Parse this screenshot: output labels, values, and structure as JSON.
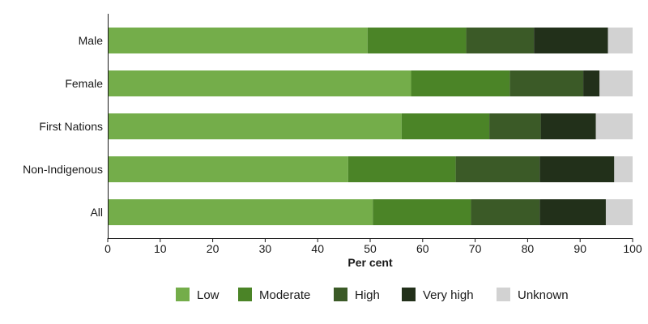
{
  "chart_data": {
    "type": "bar",
    "orientation": "horizontal",
    "stacked": true,
    "title": "",
    "xlabel": "Per cent",
    "ylabel": "",
    "xlim": [
      0,
      100
    ],
    "xticks": [
      0,
      10,
      20,
      30,
      40,
      50,
      60,
      70,
      80,
      90,
      100
    ],
    "grid": false,
    "legend_position": "bottom",
    "categories": [
      "Male",
      "Female",
      "First Nations",
      "Non-Indigenous",
      "All"
    ],
    "series": [
      {
        "name": "Low",
        "color": "#74ad4a",
        "values": [
          49.5,
          57.8,
          56.0,
          45.8,
          50.5
        ]
      },
      {
        "name": "Moderate",
        "color": "#4b8427",
        "values": [
          18.8,
          18.8,
          16.7,
          20.5,
          18.7
        ]
      },
      {
        "name": "High",
        "color": "#3b5a27",
        "values": [
          12.9,
          14.0,
          9.8,
          16.0,
          13.1
        ]
      },
      {
        "name": "Very high",
        "color": "#22301a",
        "values": [
          14.1,
          3.1,
          10.5,
          14.2,
          12.6
        ]
      },
      {
        "name": "Unknown",
        "color": "#d2d2d2",
        "values": [
          4.7,
          6.3,
          7.0,
          3.5,
          5.1
        ]
      }
    ]
  }
}
